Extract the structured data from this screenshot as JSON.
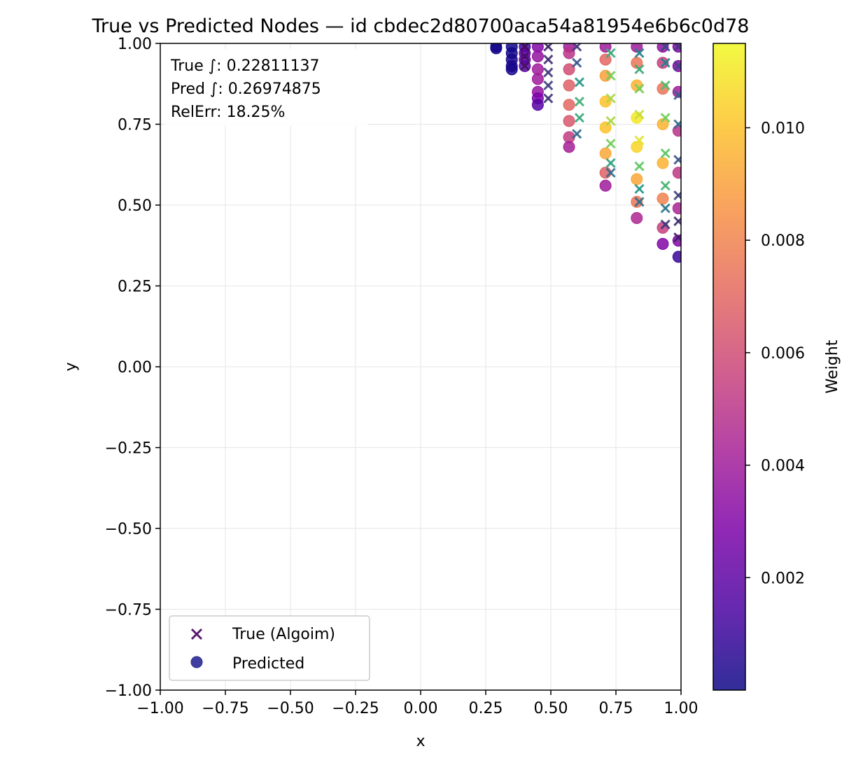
{
  "chart_data": {
    "type": "scatter",
    "title": "True vs Predicted Nodes — id cbdec2d80700aca54a81954e6b6c0d78",
    "xlabel": "x",
    "ylabel": "y",
    "xlim": [
      -1.0,
      1.0
    ],
    "ylim": [
      -1.0,
      1.0
    ],
    "x_ticks": [
      "−1.00",
      "−0.75",
      "−0.50",
      "−0.25",
      "0.00",
      "0.25",
      "0.50",
      "0.75",
      "1.00"
    ],
    "y_ticks": [
      "−1.00",
      "−0.75",
      "−0.50",
      "−0.25",
      "0.00",
      "0.25",
      "0.50",
      "0.75",
      "1.00"
    ],
    "grid": true,
    "legend": {
      "placement": "lower-left",
      "entries": [
        "True (Algoim)",
        "Predicted"
      ]
    },
    "annotation": {
      "lines": [
        "True ∫: 0.22811137",
        "Pred ∫: 0.26974875",
        "RelErr: 18.25%"
      ]
    },
    "colorbar": {
      "label": "Weight",
      "colormap": "plasma",
      "range": [
        0.0,
        0.0115
      ],
      "ticks": [
        "0.002",
        "0.004",
        "0.006",
        "0.008",
        "0.010"
      ],
      "tick_values": [
        0.002,
        0.004,
        0.006,
        0.008,
        0.01
      ]
    },
    "series": [
      {
        "name": "True (Algoim)",
        "marker": "x",
        "points": [
          [
            0.4,
            0.99,
            0.0004
          ],
          [
            0.4,
            0.96,
            0.0006
          ],
          [
            0.4,
            0.93,
            0.0007
          ],
          [
            0.49,
            0.99,
            0.0012
          ],
          [
            0.49,
            0.95,
            0.0015
          ],
          [
            0.49,
            0.91,
            0.002
          ],
          [
            0.49,
            0.87,
            0.0022
          ],
          [
            0.49,
            0.83,
            0.0018
          ],
          [
            0.6,
            0.99,
            0.002
          ],
          [
            0.6,
            0.94,
            0.003
          ],
          [
            0.61,
            0.88,
            0.006
          ],
          [
            0.61,
            0.82,
            0.0072
          ],
          [
            0.61,
            0.77,
            0.007
          ],
          [
            0.6,
            0.72,
            0.004
          ],
          [
            0.73,
            0.97,
            0.007
          ],
          [
            0.73,
            0.9,
            0.009
          ],
          [
            0.73,
            0.83,
            0.01
          ],
          [
            0.73,
            0.76,
            0.01
          ],
          [
            0.73,
            0.69,
            0.009
          ],
          [
            0.73,
            0.63,
            0.0065
          ],
          [
            0.73,
            0.6,
            0.004
          ],
          [
            0.84,
            0.97,
            0.005
          ],
          [
            0.84,
            0.92,
            0.007
          ],
          [
            0.84,
            0.86,
            0.009
          ],
          [
            0.84,
            0.78,
            0.0105
          ],
          [
            0.84,
            0.7,
            0.011
          ],
          [
            0.84,
            0.62,
            0.0085
          ],
          [
            0.84,
            0.55,
            0.006
          ],
          [
            0.84,
            0.51,
            0.004
          ],
          [
            0.94,
            0.99,
            0.0025
          ],
          [
            0.94,
            0.94,
            0.005
          ],
          [
            0.94,
            0.87,
            0.008
          ],
          [
            0.94,
            0.77,
            0.009
          ],
          [
            0.94,
            0.66,
            0.0085
          ],
          [
            0.94,
            0.56,
            0.0075
          ],
          [
            0.94,
            0.49,
            0.0045
          ],
          [
            0.94,
            0.44,
            0.002
          ],
          [
            0.99,
            0.99,
            0.002
          ],
          [
            0.99,
            0.93,
            0.0025
          ],
          [
            0.99,
            0.84,
            0.0035
          ],
          [
            0.99,
            0.75,
            0.004
          ],
          [
            0.99,
            0.64,
            0.003
          ],
          [
            0.99,
            0.53,
            0.0022
          ],
          [
            0.99,
            0.45,
            0.0015
          ],
          [
            0.99,
            0.4,
            0.001
          ]
        ]
      },
      {
        "name": "Predicted",
        "marker": "o",
        "points": [
          [
            0.29,
            0.99,
            0.0001
          ],
          [
            0.29,
            0.985,
            0.0002
          ],
          [
            0.35,
            0.99,
            0.0001
          ],
          [
            0.35,
            0.97,
            0.0002
          ],
          [
            0.35,
            0.95,
            0.0002
          ],
          [
            0.35,
            0.93,
            0.0003
          ],
          [
            0.35,
            0.92,
            0.0002
          ],
          [
            0.4,
            0.99,
            0.0012
          ],
          [
            0.4,
            0.97,
            0.002
          ],
          [
            0.4,
            0.95,
            0.0022
          ],
          [
            0.4,
            0.93,
            0.0018
          ],
          [
            0.45,
            0.99,
            0.003
          ],
          [
            0.45,
            0.96,
            0.0036
          ],
          [
            0.45,
            0.92,
            0.004
          ],
          [
            0.45,
            0.89,
            0.004
          ],
          [
            0.45,
            0.85,
            0.0036
          ],
          [
            0.45,
            0.83,
            0.0028
          ],
          [
            0.45,
            0.81,
            0.0018
          ],
          [
            0.57,
            0.99,
            0.004
          ],
          [
            0.57,
            0.97,
            0.005
          ],
          [
            0.57,
            0.92,
            0.006
          ],
          [
            0.57,
            0.87,
            0.0068
          ],
          [
            0.57,
            0.81,
            0.007
          ],
          [
            0.57,
            0.76,
            0.0064
          ],
          [
            0.57,
            0.71,
            0.0054
          ],
          [
            0.57,
            0.68,
            0.0042
          ],
          [
            0.71,
            0.99,
            0.004
          ],
          [
            0.71,
            0.95,
            0.007
          ],
          [
            0.71,
            0.9,
            0.009
          ],
          [
            0.71,
            0.82,
            0.01
          ],
          [
            0.71,
            0.74,
            0.01
          ],
          [
            0.71,
            0.66,
            0.0092
          ],
          [
            0.71,
            0.6,
            0.0068
          ],
          [
            0.71,
            0.56,
            0.004
          ],
          [
            0.83,
            0.99,
            0.004
          ],
          [
            0.83,
            0.94,
            0.0075
          ],
          [
            0.83,
            0.87,
            0.0095
          ],
          [
            0.83,
            0.77,
            0.011
          ],
          [
            0.83,
            0.68,
            0.0105
          ],
          [
            0.83,
            0.58,
            0.0092
          ],
          [
            0.83,
            0.51,
            0.0075
          ],
          [
            0.83,
            0.46,
            0.0045
          ],
          [
            0.93,
            0.99,
            0.0035
          ],
          [
            0.93,
            0.94,
            0.0055
          ],
          [
            0.93,
            0.86,
            0.0075
          ],
          [
            0.93,
            0.75,
            0.0095
          ],
          [
            0.93,
            0.63,
            0.0095
          ],
          [
            0.93,
            0.52,
            0.008
          ],
          [
            0.93,
            0.43,
            0.0055
          ],
          [
            0.93,
            0.38,
            0.003
          ],
          [
            0.99,
            0.99,
            0.003
          ],
          [
            0.99,
            0.93,
            0.003
          ],
          [
            0.99,
            0.85,
            0.004
          ],
          [
            0.99,
            0.73,
            0.005
          ],
          [
            0.99,
            0.6,
            0.0052
          ],
          [
            0.99,
            0.49,
            0.0044
          ],
          [
            0.99,
            0.39,
            0.003
          ],
          [
            0.99,
            0.34,
            0.001
          ]
        ]
      }
    ]
  }
}
